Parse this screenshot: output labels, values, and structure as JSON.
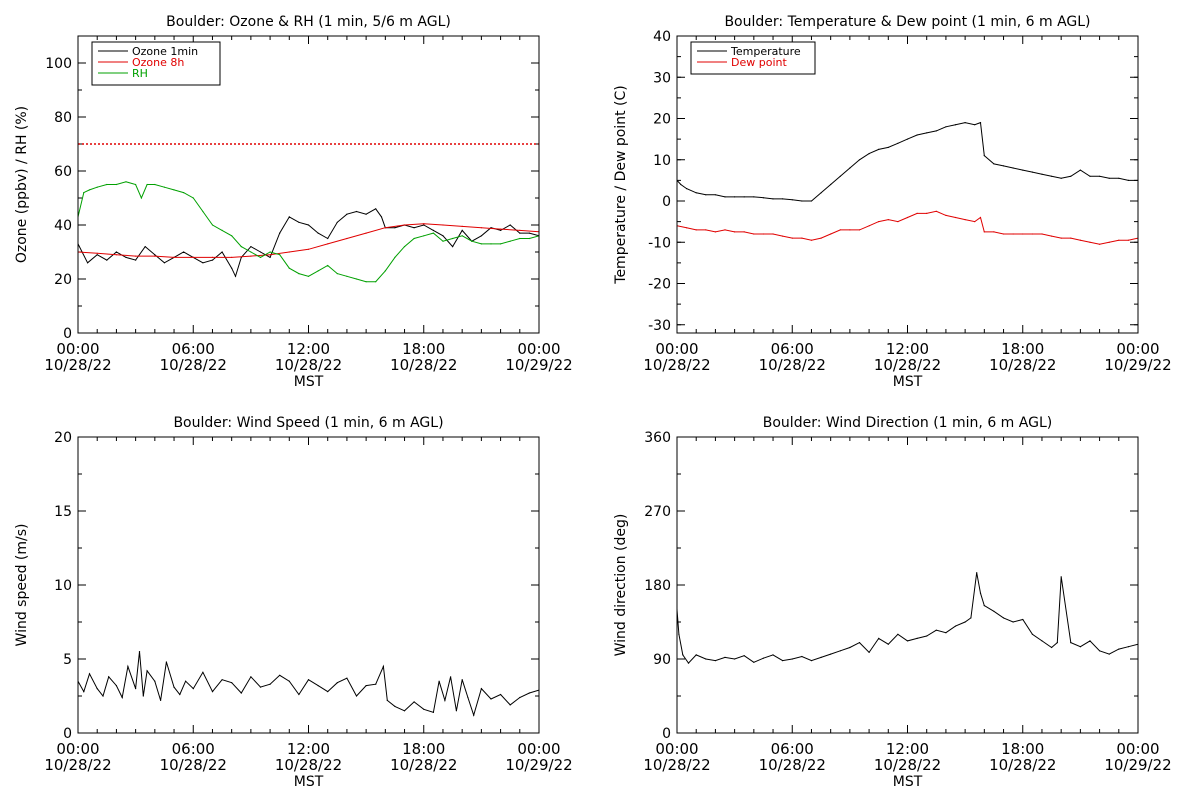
{
  "chart_data": [
    {
      "type": "line",
      "title": "Boulder: Ozone & RH (1 min, 5/6 m AGL)",
      "ylabel": "Ozone (ppbv) / RH (%)",
      "ylim": [
        0,
        110
      ],
      "yticks": [
        0,
        20,
        40,
        60,
        80,
        100
      ],
      "xlim": [
        "2022-10-28 00:00",
        "2022-10-29 00:00"
      ],
      "xticks": [
        {
          "time": "00:00",
          "date": "10/28/22"
        },
        {
          "time": "06:00",
          "date": "10/28/22"
        },
        {
          "time": "12:00",
          "date": "10/28/22"
        },
        {
          "time": "18:00",
          "date": "10/28/22"
        },
        {
          "time": "00:00",
          "date": "10/29/22"
        }
      ],
      "xlabel": "MST",
      "legend_position": "top-left",
      "hlines": [
        {
          "y": 70,
          "color": "#e00000",
          "style": "dotted"
        }
      ],
      "series": [
        {
          "name": "Ozone 1min",
          "color": "#000000",
          "x": [
            0,
            0.5,
            1,
            1.5,
            2,
            2.5,
            3,
            3.5,
            4,
            4.5,
            5,
            5.5,
            6,
            6.5,
            7,
            7.5,
            8,
            8.2,
            8.5,
            9,
            9.5,
            10,
            10.5,
            11,
            11.5,
            12,
            12.5,
            13,
            13.5,
            14,
            14.5,
            15,
            15.5,
            15.8,
            16,
            16.5,
            17,
            17.5,
            18,
            18.5,
            19,
            19.5,
            20,
            20.5,
            21,
            21.5,
            22,
            22.5,
            23,
            23.5,
            24
          ],
          "y": [
            33,
            26,
            29,
            27,
            30,
            28,
            27,
            32,
            29,
            26,
            28,
            30,
            28,
            26,
            27,
            30,
            24,
            21,
            28,
            32,
            30,
            28,
            37,
            43,
            41,
            40,
            37,
            35,
            41,
            44,
            45,
            44,
            46,
            43,
            39,
            39,
            40,
            39,
            40,
            38,
            36,
            32,
            38,
            34,
            36,
            39,
            38,
            40,
            37,
            37,
            36
          ]
        },
        {
          "name": "Ozone 8h",
          "color": "#e00000",
          "x": [
            0,
            1,
            2,
            3,
            4,
            5,
            6,
            7,
            8,
            9,
            10,
            11,
            12,
            13,
            14,
            15,
            16,
            17,
            18,
            19,
            20,
            21,
            22,
            23,
            24
          ],
          "y": [
            30,
            29.5,
            29,
            28.5,
            28.5,
            28,
            28,
            28,
            28,
            28.5,
            29,
            30,
            31,
            33,
            35,
            37,
            39,
            40,
            40.5,
            40,
            39.5,
            39,
            38.5,
            38,
            37.5
          ]
        },
        {
          "name": "RH",
          "color": "#00a000",
          "x": [
            0,
            0.3,
            0.6,
            1,
            1.5,
            2,
            2.5,
            3,
            3.3,
            3.6,
            4,
            4.5,
            5,
            5.5,
            6,
            6.5,
            7,
            7.5,
            8,
            8.5,
            9,
            9.5,
            10,
            10.5,
            11,
            11.5,
            12,
            12.5,
            13,
            13.5,
            14,
            14.5,
            15,
            15.5,
            16,
            16.5,
            17,
            17.5,
            18,
            18.5,
            19,
            19.5,
            20,
            20.5,
            21,
            21.5,
            22,
            22.5,
            23,
            23.5,
            24
          ],
          "y": [
            43,
            52,
            53,
            54,
            55,
            55,
            56,
            55,
            50,
            55,
            55,
            54,
            53,
            52,
            50,
            45,
            40,
            38,
            36,
            32,
            30,
            28,
            30,
            29,
            24,
            22,
            21,
            23,
            25,
            22,
            21,
            20,
            19,
            19,
            23,
            28,
            32,
            35,
            36,
            37,
            34,
            35,
            36,
            34,
            33,
            33,
            33,
            34,
            35,
            35,
            36
          ]
        }
      ]
    },
    {
      "type": "line",
      "title": "Boulder: Temperature & Dew point (1 min, 6 m AGL)",
      "ylabel": "Temperature / Dew point (C)",
      "ylim": [
        -32,
        40
      ],
      "yticks": [
        -30,
        -20,
        -10,
        0,
        10,
        20,
        30,
        40
      ],
      "xlim": [
        "2022-10-28 00:00",
        "2022-10-29 00:00"
      ],
      "xticks": [
        {
          "time": "00:00",
          "date": "10/28/22"
        },
        {
          "time": "06:00",
          "date": "10/28/22"
        },
        {
          "time": "12:00",
          "date": "10/28/22"
        },
        {
          "time": "18:00",
          "date": "10/28/22"
        },
        {
          "time": "00:00",
          "date": "10/29/22"
        }
      ],
      "xlabel": "MST",
      "legend_position": "top-left",
      "series": [
        {
          "name": "Temperature",
          "color": "#000000",
          "x": [
            0,
            0.2,
            0.5,
            1,
            1.5,
            2,
            2.5,
            3,
            3.5,
            4,
            4.5,
            5,
            5.5,
            6,
            6.5,
            7,
            7.5,
            8,
            8.5,
            9,
            9.5,
            10,
            10.5,
            11,
            11.5,
            12,
            12.5,
            13,
            13.5,
            14,
            14.5,
            15,
            15.5,
            15.8,
            16,
            16.5,
            17,
            17.5,
            18,
            18.5,
            19,
            19.5,
            20,
            20.5,
            21,
            21.5,
            22,
            22.5,
            23,
            23.5,
            24
          ],
          "y": [
            5,
            4,
            3,
            2,
            1.5,
            1.5,
            1,
            1,
            1,
            1,
            0.8,
            0.5,
            0.5,
            0.3,
            0,
            0,
            2,
            4,
            6,
            8,
            10,
            11.5,
            12.5,
            13,
            14,
            15,
            16,
            16.5,
            17,
            18,
            18.5,
            19,
            18.5,
            19,
            11,
            9,
            8.5,
            8,
            7.5,
            7,
            6.5,
            6,
            5.5,
            6,
            7.5,
            6,
            6,
            5.5,
            5.5,
            5,
            5
          ]
        },
        {
          "name": "Dew point",
          "color": "#e00000",
          "x": [
            0,
            0.5,
            1,
            1.5,
            2,
            2.5,
            3,
            3.5,
            4,
            4.5,
            5,
            5.5,
            6,
            6.5,
            7,
            7.5,
            8,
            8.5,
            9,
            9.5,
            10,
            10.5,
            11,
            11.5,
            12,
            12.5,
            13,
            13.5,
            14,
            14.5,
            15,
            15.5,
            15.8,
            16,
            16.5,
            17,
            17.5,
            18,
            18.5,
            19,
            19.5,
            20,
            20.5,
            21,
            21.5,
            22,
            22.5,
            23,
            23.5,
            24
          ],
          "y": [
            -6,
            -6.5,
            -7,
            -7,
            -7.5,
            -7,
            -7.5,
            -7.5,
            -8,
            -8,
            -8,
            -8.5,
            -9,
            -9,
            -9.5,
            -9,
            -8,
            -7,
            -7,
            -7,
            -6,
            -5,
            -4.5,
            -5,
            -4,
            -3,
            -3,
            -2.5,
            -3.5,
            -4,
            -4.5,
            -5,
            -4,
            -7.5,
            -7.5,
            -8,
            -8,
            -8,
            -8,
            -8,
            -8.5,
            -9,
            -9,
            -9.5,
            -10,
            -10.5,
            -10,
            -9.5,
            -9.5,
            -9
          ]
        }
      ]
    },
    {
      "type": "line",
      "title": "Boulder: Wind Speed (1 min, 6 m AGL)",
      "ylabel": "Wind speed (m/s)",
      "ylim": [
        0,
        20
      ],
      "yticks": [
        0,
        5,
        10,
        15,
        20
      ],
      "xlim": [
        "2022-10-28 00:00",
        "2022-10-29 00:00"
      ],
      "xticks": [
        {
          "time": "00:00",
          "date": "10/28/22"
        },
        {
          "time": "06:00",
          "date": "10/28/22"
        },
        {
          "time": "12:00",
          "date": "10/28/22"
        },
        {
          "time": "18:00",
          "date": "10/28/22"
        },
        {
          "time": "00:00",
          "date": "10/29/22"
        }
      ],
      "xlabel": "MST",
      "series": [
        {
          "color": "#000000",
          "x": [
            0,
            0.3,
            0.6,
            1,
            1.3,
            1.6,
            2,
            2.3,
            2.6,
            3,
            3.2,
            3.4,
            3.6,
            4,
            4.3,
            4.6,
            5,
            5.3,
            5.6,
            6,
            6.5,
            7,
            7.5,
            8,
            8.5,
            9,
            9.5,
            10,
            10.5,
            11,
            11.5,
            12,
            12.5,
            13,
            13.5,
            14,
            14.5,
            15,
            15.5,
            15.9,
            16.1,
            16.5,
            17,
            17.5,
            18,
            18.5,
            18.8,
            19.1,
            19.4,
            19.7,
            20,
            20.3,
            20.6,
            21,
            21.5,
            22,
            22.5,
            23,
            23.5,
            24
          ],
          "y": [
            3.5,
            2.8,
            4,
            3,
            2.5,
            3.8,
            3.2,
            2.4,
            4.5,
            3,
            5.5,
            2.5,
            4.2,
            3.5,
            2.2,
            4.8,
            3.1,
            2.6,
            3.5,
            3,
            4.1,
            2.8,
            3.6,
            3.4,
            2.7,
            3.8,
            3.1,
            3.3,
            3.9,
            3.5,
            2.6,
            3.6,
            3.2,
            2.8,
            3.4,
            3.7,
            2.5,
            3.2,
            3.3,
            4.5,
            2.2,
            1.8,
            1.5,
            2.1,
            1.6,
            1.4,
            3.5,
            2.2,
            3.8,
            1.5,
            3.6,
            2.4,
            1.2,
            3,
            2.3,
            2.6,
            1.9,
            2.4,
            2.7,
            2.9
          ]
        }
      ]
    },
    {
      "type": "line",
      "title": "Boulder: Wind Direction (1 min, 6 m AGL)",
      "ylabel": "Wind direction (deg)",
      "ylim": [
        0,
        360
      ],
      "yticks": [
        0,
        90,
        180,
        270,
        360
      ],
      "xlim": [
        "2022-10-28 00:00",
        "2022-10-29 00:00"
      ],
      "xticks": [
        {
          "time": "00:00",
          "date": "10/28/22"
        },
        {
          "time": "06:00",
          "date": "10/28/22"
        },
        {
          "time": "12:00",
          "date": "10/28/22"
        },
        {
          "time": "18:00",
          "date": "10/28/22"
        },
        {
          "time": "00:00",
          "date": "10/29/22"
        }
      ],
      "xlabel": "MST",
      "series": [
        {
          "color": "#000000",
          "x": [
            0,
            0.1,
            0.3,
            0.6,
            1,
            1.5,
            2,
            2.5,
            3,
            3.5,
            4,
            4.5,
            5,
            5.5,
            6,
            6.5,
            7,
            7.5,
            8,
            8.5,
            9,
            9.5,
            10,
            10.5,
            11,
            11.5,
            12,
            12.5,
            13,
            13.5,
            14,
            14.5,
            15,
            15.3,
            15.6,
            15.8,
            16,
            16.5,
            17,
            17.5,
            18,
            18.5,
            19,
            19.5,
            19.8,
            20,
            20.5,
            21,
            21.5,
            22,
            22.5,
            23,
            23.5,
            24
          ],
          "y": [
            150,
            120,
            95,
            85,
            95,
            90,
            88,
            92,
            90,
            94,
            86,
            91,
            95,
            88,
            90,
            93,
            88,
            92,
            96,
            100,
            104,
            110,
            98,
            115,
            108,
            120,
            112,
            115,
            118,
            125,
            122,
            130,
            135,
            140,
            195,
            170,
            155,
            148,
            140,
            135,
            138,
            120,
            112,
            104,
            110,
            190,
            110,
            105,
            112,
            100,
            96,
            102,
            105,
            108
          ]
        }
      ]
    }
  ]
}
